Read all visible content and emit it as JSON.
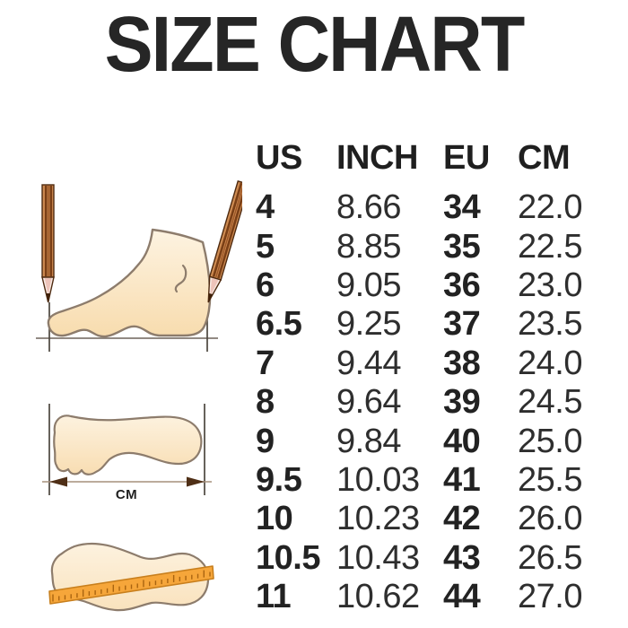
{
  "title": "SIZE CHART",
  "chart_data": {
    "type": "table",
    "title": "SIZE CHART",
    "columns": [
      "US",
      "INCH",
      "EU",
      "CM"
    ],
    "bold_columns": [
      0,
      2
    ],
    "rows": [
      [
        "4",
        "8.66",
        "34",
        "22.0"
      ],
      [
        "5",
        "8.85",
        "35",
        "22.5"
      ],
      [
        "6",
        "9.05",
        "36",
        "23.0"
      ],
      [
        "6.5",
        "9.25",
        "37",
        "23.5"
      ],
      [
        "7",
        "9.44",
        "38",
        "24.0"
      ],
      [
        "8",
        "9.64",
        "39",
        "24.5"
      ],
      [
        "9",
        "9.84",
        "40",
        "25.0"
      ],
      [
        "9.5",
        "10.03",
        "41",
        "25.5"
      ],
      [
        "10",
        "10.23",
        "42",
        "26.0"
      ],
      [
        "10.5",
        "10.43",
        "43",
        "26.5"
      ],
      [
        "11",
        "10.62",
        "44",
        "27.0"
      ]
    ]
  },
  "illustrations": {
    "cm_label": "CM",
    "icons": [
      "foot-side-pencil-measure-icon",
      "footprint-length-arrow-icon",
      "footprint-ruler-icon"
    ]
  },
  "colors": {
    "background": "#ffffff",
    "text": "#262626",
    "foot_fill": "#fbe8ca",
    "foot_outline": "#8d7c6c",
    "pencil_body": "#cf8c52",
    "pencil_stripe": "#7a3f16",
    "pencil_tip": "#f8e9e2",
    "pencil_lead": "#3f2008",
    "ruler_fill": "#f6a63a",
    "ruler_stroke": "#c87f1d",
    "arrow_head": "#4f2f16"
  }
}
